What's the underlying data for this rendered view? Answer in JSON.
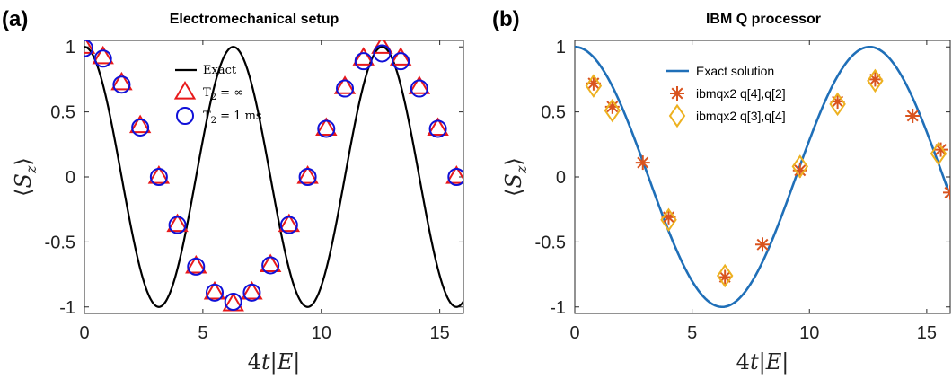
{
  "chart_data": [
    {
      "panel_label": "(a)",
      "title": "Electromechanical setup",
      "type": "line",
      "xlabel": "4t|E|",
      "ylabel": "⟨S_z⟩",
      "xlim": [
        0,
        16
      ],
      "ylim": [
        -1.05,
        1.05
      ],
      "xticks": [
        "0",
        "5",
        "10",
        "15"
      ],
      "yticks": [
        "1",
        "0.5",
        "0",
        "-0.5",
        "-1"
      ],
      "grid": false,
      "legend_position": "top-center",
      "colors": {
        "exact": "#000000",
        "triangle": "#e8191b",
        "circle": "#1010d8"
      },
      "series": [
        {
          "name": "Exact",
          "function": "cos(x)",
          "style": "line"
        },
        {
          "name": "T₂ = ∞",
          "style": "triangle",
          "x": [
            0,
            0.785,
            1.571,
            2.356,
            3.142,
            3.927,
            4.712,
            5.498,
            6.283,
            7.069,
            7.854,
            8.639,
            9.425,
            10.21,
            10.996,
            11.781,
            12.566,
            13.352,
            14.137,
            14.923,
            15.708
          ],
          "y": [
            1.0,
            0.92,
            0.72,
            0.39,
            0.0,
            -0.37,
            -0.69,
            -0.89,
            -0.98,
            -0.89,
            -0.68,
            -0.37,
            0.0,
            0.37,
            0.69,
            0.91,
            1.0,
            0.91,
            0.69,
            0.37,
            0.0
          ]
        },
        {
          "name": "T₂ = 1 ms",
          "style": "circle",
          "x": [
            0,
            0.785,
            1.571,
            2.356,
            3.142,
            3.927,
            4.712,
            5.498,
            6.283,
            7.069,
            7.854,
            8.639,
            9.425,
            10.21,
            10.996,
            11.781,
            12.566,
            13.352,
            14.137,
            14.923,
            15.708
          ],
          "y": [
            0.99,
            0.91,
            0.71,
            0.38,
            0.0,
            -0.37,
            -0.69,
            -0.89,
            -0.96,
            -0.89,
            -0.68,
            -0.37,
            0.0,
            0.37,
            0.68,
            0.89,
            0.95,
            0.89,
            0.68,
            0.37,
            0.0
          ]
        }
      ]
    },
    {
      "panel_label": "(b)",
      "title": "IBM Q processor",
      "type": "line",
      "xlabel": "4t|E|",
      "ylabel": "⟨S_z⟩",
      "xlim": [
        0,
        16
      ],
      "ylim": [
        -1.05,
        1.05
      ],
      "xticks": [
        "0",
        "5",
        "10",
        "15"
      ],
      "yticks": [
        "1",
        "0.5",
        "0",
        "-0.5",
        "-1"
      ],
      "grid": false,
      "legend_position": "top-center",
      "colors": {
        "exact": "#1f6fb8",
        "star": "#d9531e",
        "diamond": "#edb120"
      },
      "series": [
        {
          "name": "Exact solution",
          "function": "cos(x/2)",
          "style": "line"
        },
        {
          "name": "ibmqx2 q[4],q[2]",
          "style": "star",
          "x": [
            0.8,
            1.6,
            2.9,
            4.0,
            6.4,
            8.0,
            9.6,
            11.2,
            12.8,
            14.4,
            15.6,
            16.0
          ],
          "y": [
            0.72,
            0.54,
            0.11,
            -0.31,
            -0.77,
            -0.52,
            0.05,
            0.58,
            0.75,
            0.47,
            0.21,
            -0.12
          ]
        },
        {
          "name": "ibmqx2 q[3],q[4]",
          "style": "diamond",
          "x": [
            0.8,
            1.6,
            4.0,
            6.4,
            9.6,
            11.2,
            12.8,
            15.5
          ],
          "y": [
            0.7,
            0.51,
            -0.33,
            -0.76,
            0.08,
            0.56,
            0.74,
            0.18
          ]
        }
      ]
    }
  ]
}
